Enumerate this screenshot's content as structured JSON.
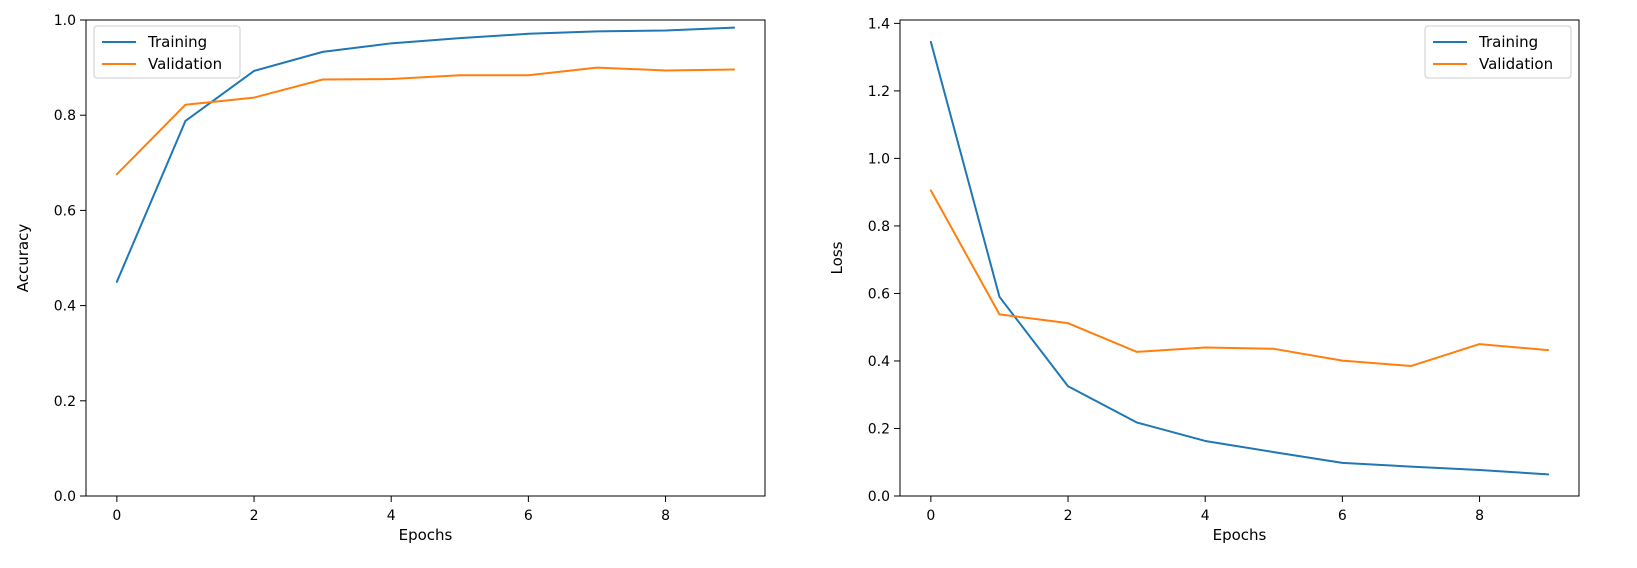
{
  "chart_data": [
    {
      "type": "line",
      "title": "",
      "xlabel": "Epochs",
      "ylabel": "Accuracy",
      "x": [
        0,
        1,
        2,
        3,
        4,
        5,
        6,
        7,
        8,
        9
      ],
      "xlim": [
        -0.45,
        9.45
      ],
      "ylim": [
        0.0,
        1.0
      ],
      "xticks": [
        0,
        2,
        4,
        6,
        8
      ],
      "yticks": [
        0.0,
        0.2,
        0.4,
        0.6,
        0.8,
        1.0
      ],
      "xtick_labels": [
        "0",
        "2",
        "4",
        "6",
        "8"
      ],
      "ytick_labels": [
        "0.0",
        "0.2",
        "0.4",
        "0.6",
        "0.8",
        "1.0"
      ],
      "grid": false,
      "legend_position": "top-left",
      "series": [
        {
          "name": "Training",
          "color": "#1f77b4",
          "values": [
            0.45,
            0.788,
            0.893,
            0.933,
            0.951,
            0.962,
            0.971,
            0.976,
            0.978,
            0.984
          ]
        },
        {
          "name": "Validation",
          "color": "#ff7f0e",
          "values": [
            0.676,
            0.822,
            0.837,
            0.875,
            0.876,
            0.884,
            0.884,
            0.9,
            0.894,
            0.896
          ]
        }
      ]
    },
    {
      "type": "line",
      "title": "",
      "xlabel": "Epochs",
      "ylabel": "Loss",
      "x": [
        0,
        1,
        2,
        3,
        4,
        5,
        6,
        7,
        8,
        9
      ],
      "xlim": [
        -0.45,
        9.45
      ],
      "ylim": [
        0.0,
        1.41
      ],
      "xticks": [
        0,
        2,
        4,
        6,
        8
      ],
      "yticks": [
        0.0,
        0.2,
        0.4,
        0.6,
        0.8,
        1.0,
        1.2,
        1.4
      ],
      "xtick_labels": [
        "0",
        "2",
        "4",
        "6",
        "8"
      ],
      "ytick_labels": [
        "0.0",
        "0.2",
        "0.4",
        "0.6",
        "0.8",
        "1.0",
        "1.2",
        "1.4"
      ],
      "grid": false,
      "legend_position": "top-right",
      "series": [
        {
          "name": "Training",
          "color": "#1f77b4",
          "values": [
            1.345,
            0.59,
            0.325,
            0.218,
            0.163,
            0.13,
            0.098,
            0.087,
            0.077,
            0.064
          ]
        },
        {
          "name": "Validation",
          "color": "#ff7f0e",
          "values": [
            0.905,
            0.538,
            0.512,
            0.427,
            0.44,
            0.436,
            0.401,
            0.385,
            0.45,
            0.432
          ]
        }
      ]
    }
  ]
}
